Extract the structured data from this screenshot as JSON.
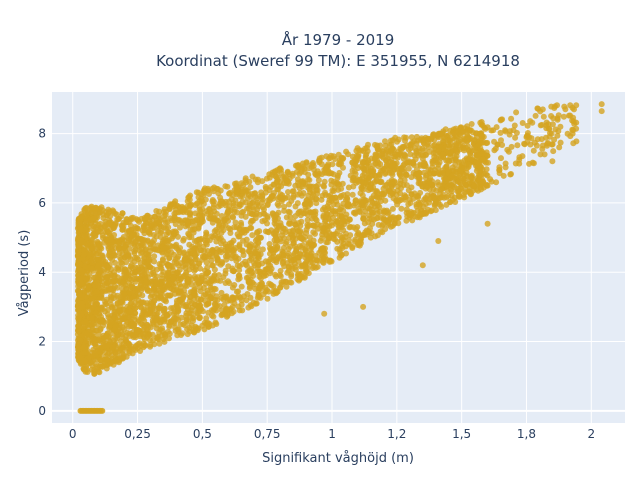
{
  "chart_data": {
    "type": "scatter",
    "title": "År 1979 - 2019",
    "subtitle": "Koordinat (Sweref 99 TM): E 351955, N 6214918",
    "xlabel": "Signifikant våghöjd (m)",
    "ylabel": "Vågperiod (s)",
    "xlim": [
      -0.08,
      2.13
    ],
    "ylim": [
      -0.35,
      9.2
    ],
    "x_ticks": [
      0,
      0.25,
      0.5,
      0.75,
      1,
      1.25,
      1.5,
      1.75,
      2
    ],
    "x_tick_labels": [
      "0",
      "0,25",
      "0,5",
      "0,75",
      "1",
      "1,2",
      "1,5",
      "1,8",
      "2"
    ],
    "y_ticks": [
      0,
      2,
      4,
      6,
      8
    ],
    "y_tick_labels": [
      "0",
      "2",
      "4",
      "6",
      "8"
    ],
    "grid": true,
    "legend": "none",
    "series": [
      {
        "marker_color": "#d4a420",
        "point_count_note": "dense cloud",
        "envelope": {
          "x": [
            0.02,
            0.05,
            0.1,
            0.25,
            0.5,
            0.75,
            1.0,
            1.25,
            1.5,
            1.75,
            1.95
          ],
          "y_min": [
            1.5,
            1.1,
            1.05,
            1.7,
            2.3,
            3.2,
            4.3,
            5.3,
            6.1,
            7.0,
            7.8
          ],
          "y_max": [
            5.5,
            5.9,
            5.9,
            5.6,
            6.4,
            6.9,
            7.4,
            7.9,
            8.2,
            8.7,
            8.9
          ]
        },
        "zero_period_x_range": [
          0.03,
          0.12
        ]
      }
    ],
    "outliers": [
      {
        "x": 2.04,
        "y": 8.85
      },
      {
        "x": 2.04,
        "y": 8.65
      },
      {
        "x": 1.87,
        "y": 8.4
      },
      {
        "x": 1.82,
        "y": 7.4
      },
      {
        "x": 1.85,
        "y": 7.2
      },
      {
        "x": 1.6,
        "y": 6.5
      },
      {
        "x": 1.6,
        "y": 5.4
      },
      {
        "x": 1.41,
        "y": 4.9
      },
      {
        "x": 1.35,
        "y": 4.2
      },
      {
        "x": 1.12,
        "y": 3.0
      },
      {
        "x": 0.97,
        "y": 2.8
      },
      {
        "x": 1.7,
        "y": 8.1
      },
      {
        "x": 1.75,
        "y": 7.9
      },
      {
        "x": 1.9,
        "y": 8.7
      },
      {
        "x": 1.93,
        "y": 8.1
      }
    ]
  }
}
